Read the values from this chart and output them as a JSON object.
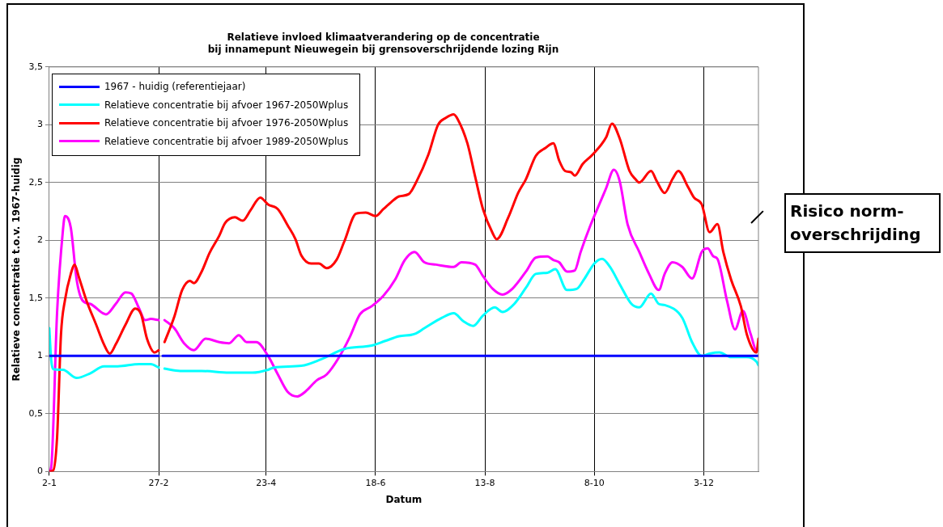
{
  "chart_data": {
    "type": "line",
    "title": "Relatieve invloed klimaatverandering op de concentratie\nbij innamepunt Nieuwegein bij grensoverschrijdende lozing Rijn",
    "xlabel": "Datum",
    "ylabel": "Relatieve concentratie t.o.v. 1967-huidig",
    "xlim": [
      "--01-02",
      "--12-31"
    ],
    "xticks": [
      {
        "value": "--01-02",
        "label": "2-1"
      },
      {
        "value": "--02-27",
        "label": "27-2"
      },
      {
        "value": "--04-23",
        "label": "23-4"
      },
      {
        "value": "--06-18",
        "label": "18-6"
      },
      {
        "value": "--08-13",
        "label": "13-8"
      },
      {
        "value": "--10-08",
        "label": "8-10"
      },
      {
        "value": "--12-03",
        "label": "3-12"
      }
    ],
    "ylim": [
      0,
      3.5
    ],
    "yticks": [
      {
        "value": 0,
        "label": "0"
      },
      {
        "value": 0.5,
        "label": "0,5"
      },
      {
        "value": 1,
        "label": "1"
      },
      {
        "value": 1.5,
        "label": "1,5"
      },
      {
        "value": 2,
        "label": "2"
      },
      {
        "value": 2.5,
        "label": "2,5"
      },
      {
        "value": 3,
        "label": "3"
      },
      {
        "value": 3.5,
        "label": "3,5"
      }
    ],
    "grid": true,
    "legend": "top left",
    "marker": "none",
    "line_style": "solid",
    "annotations": [
      "Risico norm-overschrijding"
    ],
    "x": [
      "--01-02",
      "--02-27",
      "--02-28",
      "--03-01",
      "--12-31"
    ],
    "series": [
      {
        "name": "1967 - huidig (referentiejaar)",
        "color": "#0000ff",
        "values": [
          1,
          1,
          null,
          1,
          1
        ]
      },
      {
        "name": "Relatieve concentratie bij afvoer 1967-2050Wplus",
        "color": "#00ffff",
        "x": [
          "--01-02",
          "--01-03",
          "--01-04",
          "--01-09",
          "--01-16",
          "--01-23",
          "--01-30",
          "--02-06",
          "--02-17",
          "--02-23",
          "--02-27",
          "--02-28",
          "--03-02",
          "--03-10",
          "--03-21",
          "--04-04",
          "--04-16",
          "--04-24",
          "--04-27",
          "--05-11",
          "--05-21",
          "--06-02",
          "--06-16",
          "--06-23",
          "--06-30",
          "--07-08",
          "--07-13",
          "--07-22",
          "--07-28",
          "--08-02",
          "--08-07",
          "--08-12",
          "--08-18",
          "--08-22",
          "--08-28",
          "--09-03",
          "--09-08",
          "--09-14",
          "--09-18",
          "--09-24",
          "--09-29",
          "--10-03",
          "--10-08",
          "--10-12",
          "--10-16",
          "--10-21",
          "--10-27",
          "--10-31",
          "--11-06",
          "--11-10",
          "--11-13",
          "--11-22",
          "--11-27",
          "--12-02",
          "--12-06",
          "--12-11",
          "--12-17",
          "--12-25",
          "--12-30",
          "--12-31"
        ],
        "values": [
          1.24,
          0.96,
          0.885,
          0.88,
          0.81,
          0.85,
          0.91,
          0.91,
          0.93,
          0.93,
          0.9,
          null,
          0.89,
          0.87,
          0.87,
          0.855,
          0.855,
          0.88,
          0.9,
          0.915,
          0.97,
          1.06,
          1.09,
          1.13,
          1.17,
          1.19,
          1.24,
          1.33,
          1.37,
          1.3,
          1.26,
          1.35,
          1.42,
          1.38,
          1.45,
          1.59,
          1.71,
          1.72,
          1.75,
          1.57,
          1.58,
          1.67,
          1.8,
          1.84,
          1.77,
          1.62,
          1.45,
          1.42,
          1.54,
          1.45,
          1.44,
          1.33,
          1.12,
          1,
          1.02,
          1.03,
          0.99,
          0.99,
          0.95,
          0.92
        ]
      },
      {
        "name": "Relatieve concentratie bij afvoer 1976-2050Wplus",
        "color": "#ff0000",
        "x": [
          "--01-02",
          "--01-04",
          "--01-06",
          "--01-08",
          "--01-10",
          "--01-13",
          "--01-15",
          "--01-17",
          "--01-21",
          "--01-26",
          "--01-30",
          "--02-02",
          "--02-05",
          "--02-10",
          "--02-15",
          "--02-18",
          "--02-21",
          "--02-25",
          "--02-27",
          "--02-28",
          "--03-02",
          "--03-07",
          "--03-11",
          "--03-15",
          "--03-17",
          "--03-21",
          "--03-25",
          "--03-30",
          "--04-02",
          "--04-07",
          "--04-11",
          "--04-15",
          "--04-20",
          "--04-24",
          "--04-29",
          "--05-04",
          "--05-08",
          "--05-11",
          "--05-16",
          "--05-20",
          "--05-24",
          "--05-29",
          "--06-02",
          "--06-08",
          "--06-13",
          "--06-18",
          "--06-22",
          "--06-26",
          "--06-30",
          "--07-05",
          "--07-09",
          "--07-15",
          "--07-20",
          "--07-24",
          "--07-28",
          "--07-30",
          "--08-04",
          "--08-08",
          "--08-12",
          "--08-17",
          "--08-19",
          "--08-25",
          "--08-30",
          "--09-03",
          "--09-08",
          "--09-13",
          "--09-17",
          "--09-20",
          "--09-23",
          "--09-26",
          "--09-28",
          "--10-02",
          "--10-07",
          "--10-14",
          "--10-17",
          "--10-21",
          "--10-26",
          "--10-29",
          "--10-31",
          "--11-06",
          "--11-09",
          "--11-13",
          "--11-17",
          "--11-20",
          "--11-25",
          "--11-28",
          "--12-02",
          "--12-06",
          "--12-10",
          "--12-13",
          "--12-17",
          "--12-22",
          "--12-25",
          "--12-30",
          "--12-31"
        ],
        "values": [
          0,
          0.01,
          0.3,
          1.19,
          1.48,
          1.71,
          1.79,
          1.69,
          1.48,
          1.27,
          1.1,
          1.02,
          1.1,
          1.27,
          1.41,
          1.36,
          1.15,
          1.03,
          1.05,
          null,
          1.12,
          1.34,
          1.57,
          1.65,
          1.63,
          1.73,
          1.89,
          2.04,
          2.15,
          2.2,
          2.17,
          2.26,
          2.37,
          2.31,
          2.27,
          2.13,
          2.01,
          1.87,
          1.8,
          1.8,
          1.76,
          1.83,
          1.99,
          2.23,
          2.24,
          2.21,
          2.27,
          2.33,
          2.38,
          2.4,
          2.51,
          2.74,
          3,
          3.06,
          3.09,
          3.05,
          2.84,
          2.55,
          2.27,
          2.06,
          2.01,
          2.2,
          2.41,
          2.53,
          2.73,
          2.8,
          2.84,
          2.69,
          2.6,
          2.59,
          2.56,
          2.66,
          2.74,
          2.89,
          3.01,
          2.88,
          2.6,
          2.53,
          2.5,
          2.6,
          2.51,
          2.41,
          2.53,
          2.6,
          2.46,
          2.37,
          2.31,
          2.07,
          2.14,
          1.9,
          1.66,
          1.43,
          1.19,
          1.03,
          1.15
        ]
      },
      {
        "name": "Relatieve concentratie bij afvoer 1989-2050Wplus",
        "color": "#ff00ff",
        "x": [
          "--01-02",
          "--01-03",
          "--01-06",
          "--01-09",
          "--01-10",
          "--01-13",
          "--01-16",
          "--01-19",
          "--01-23",
          "--01-31",
          "--02-05",
          "--02-10",
          "--02-13",
          "--02-17",
          "--02-20",
          "--02-23",
          "--02-27",
          "--02-28",
          "--03-02",
          "--03-07",
          "--03-12",
          "--03-17",
          "--03-23",
          "--03-30",
          "--04-04",
          "--04-09",
          "--04-13",
          "--04-18",
          "--04-24",
          "--04-29",
          "--05-04",
          "--05-09",
          "--05-13",
          "--05-19",
          "--05-24",
          "--05-30",
          "--06-05",
          "--06-10",
          "--06-16",
          "--06-22",
          "--06-28",
          "--07-03",
          "--07-08",
          "--07-13",
          "--07-19",
          "--07-28",
          "--08-01",
          "--08-08",
          "--08-12",
          "--08-17",
          "--08-22",
          "--08-27",
          "--09-03",
          "--09-08",
          "--09-14",
          "--09-17",
          "--09-20",
          "--09-24",
          "--09-28",
          "--10-01",
          "--10-06",
          "--10-11",
          "--10-14",
          "--10-18",
          "--10-21",
          "--10-25",
          "--10-31",
          "--11-05",
          "--11-10",
          "--11-13",
          "--11-17",
          "--11-22",
          "--11-27",
          "--12-02",
          "--12-05",
          "--12-08",
          "--12-10",
          "--12-15",
          "--12-19",
          "--12-23",
          "--12-27",
          "--12-30",
          "--12-31"
        ],
        "values": [
          0,
          0.04,
          1.38,
          2.09,
          2.21,
          2.11,
          1.66,
          1.48,
          1.45,
          1.36,
          1.45,
          1.55,
          1.54,
          1.41,
          1.31,
          1.32,
          1.31,
          null,
          1.31,
          1.24,
          1.11,
          1.05,
          1.15,
          1.12,
          1.11,
          1.18,
          1.12,
          1.12,
          1,
          0.84,
          0.69,
          0.65,
          0.69,
          0.79,
          0.84,
          0.98,
          1.17,
          1.36,
          1.43,
          1.52,
          1.66,
          1.83,
          1.9,
          1.81,
          1.79,
          1.77,
          1.81,
          1.79,
          1.69,
          1.58,
          1.53,
          1.58,
          1.73,
          1.85,
          1.86,
          1.83,
          1.81,
          1.73,
          1.74,
          1.9,
          2.13,
          2.33,
          2.45,
          2.61,
          2.51,
          2.14,
          1.9,
          1.71,
          1.57,
          1.71,
          1.81,
          1.77,
          1.67,
          1.9,
          1.93,
          1.86,
          1.84,
          1.47,
          1.23,
          1.39,
          1.19,
          1.05,
          1.05
        ]
      }
    ]
  }
}
